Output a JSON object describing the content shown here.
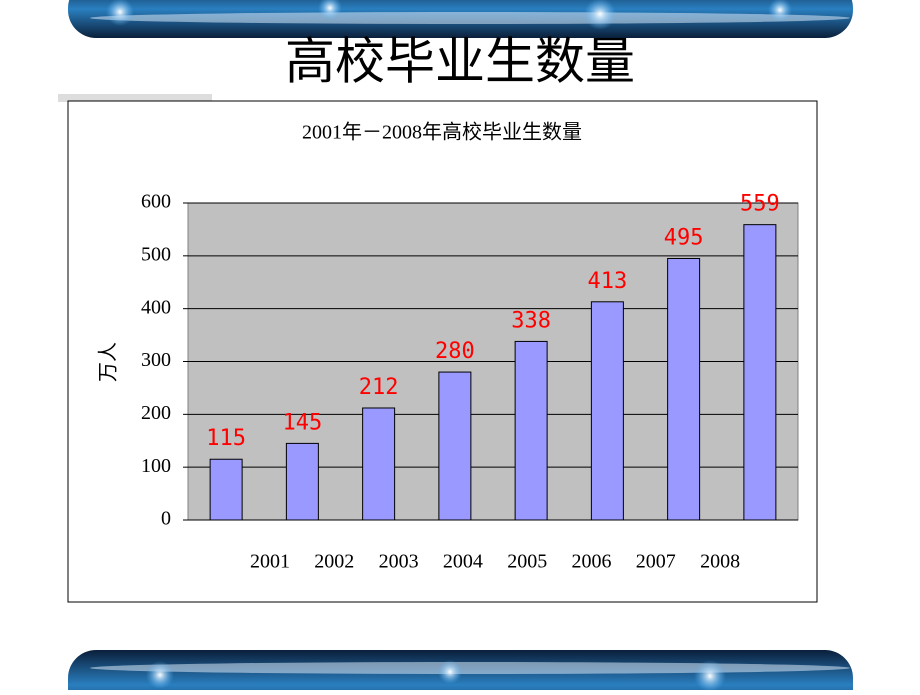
{
  "slide_title": "高校毕业生数量",
  "chart_data": {
    "type": "bar",
    "title": "2001年－2008年高校毕业生数量",
    "y_label": "万人",
    "categories": [
      "2001",
      "2002",
      "2003",
      "2004",
      "2005",
      "2006",
      "2007",
      "2008"
    ],
    "values": [
      115,
      145,
      212,
      280,
      338,
      413,
      495,
      559
    ],
    "color": "#9999ff",
    "label_color": "#ff0000",
    "plot_background": "#c0c0c0",
    "ylim": [
      0,
      600
    ],
    "yticks": [
      0,
      100,
      200,
      300,
      400,
      500,
      600
    ],
    "grid": true
  }
}
